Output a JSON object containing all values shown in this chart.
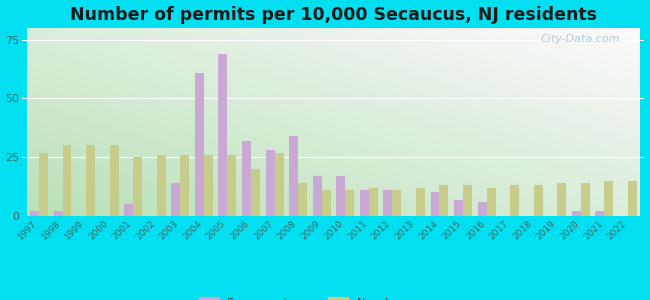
{
  "title": "Number of permits per 10,000 Secaucus, NJ residents",
  "years": [
    1997,
    1998,
    1999,
    2000,
    2001,
    2002,
    2003,
    2004,
    2005,
    2006,
    2007,
    2008,
    2009,
    2010,
    2011,
    2012,
    2013,
    2014,
    2015,
    2016,
    2017,
    2018,
    2019,
    2020,
    2021,
    2022
  ],
  "secaucus": [
    2,
    2,
    0,
    0,
    5,
    0,
    14,
    61,
    69,
    32,
    28,
    34,
    17,
    17,
    11,
    11,
    0,
    10,
    7,
    6,
    0,
    0,
    0,
    2,
    2,
    0
  ],
  "nj_avg": [
    27,
    30,
    30,
    30,
    25,
    26,
    26,
    26,
    26,
    20,
    27,
    14,
    11,
    11,
    12,
    11,
    12,
    13,
    13,
    12,
    13,
    13,
    14,
    14,
    15,
    15
  ],
  "secaucus_color": "#c9a8d4",
  "nj_avg_color": "#c8cc8a",
  "background_outer": "#00e0f0",
  "yticks": [
    0,
    25,
    50,
    75
  ],
  "ylim": [
    0,
    80
  ],
  "bar_width": 0.38,
  "title_fontsize": 12.5,
  "watermark": "City-Data.com",
  "bg_left_bottom": "#b8d8b8",
  "bg_right_top": "#f0f8f8"
}
